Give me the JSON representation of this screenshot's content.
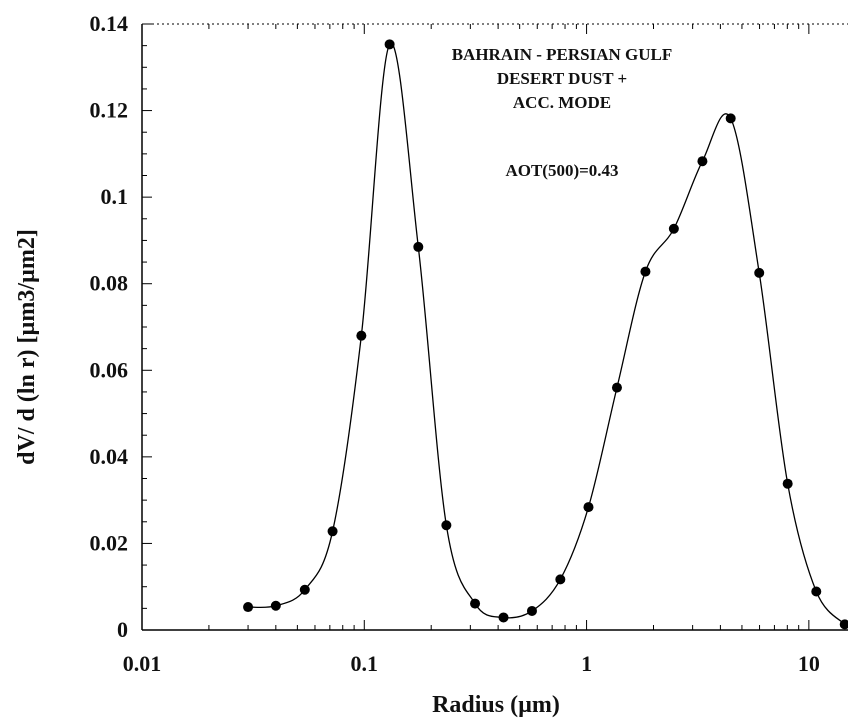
{
  "chart_data": {
    "type": "scatter",
    "xlabel": "Radius (µm)",
    "ylabel": "dV/ d (ln r)  [µm3/µm2]",
    "xscale": "log",
    "xlim": [
      0.01,
      15
    ],
    "ylim": [
      0,
      0.14
    ],
    "x_ticks": [
      0.01,
      0.1,
      1,
      10
    ],
    "x_tick_labels": [
      "0.01",
      "0.1",
      "1",
      "10"
    ],
    "y_ticks": [
      0,
      0.02,
      0.04,
      0.06,
      0.08,
      0.1,
      0.12,
      0.14
    ],
    "y_tick_labels": [
      "0",
      "0.02",
      "0.04",
      "0.06",
      "0.08",
      "0.1",
      "0.12",
      "0.14"
    ],
    "grid": false,
    "annotations": [
      "BAHRAIN - PERSIAN GULF",
      "DESERT DUST +",
      "ACC. MODE",
      "AOT(500)=0.43"
    ],
    "series": [
      {
        "x": [
          0.03,
          0.04,
          0.054,
          0.072,
          0.097,
          0.13,
          0.175,
          0.234,
          0.315,
          0.423,
          0.568,
          0.762,
          1.02,
          1.37,
          1.84,
          2.47,
          3.32,
          4.45,
          5.98,
          8.03,
          10.8,
          14.5
        ],
        "values": [
          0.0053,
          0.0056,
          0.0093,
          0.0228,
          0.068,
          0.1353,
          0.0885,
          0.0242,
          0.0061,
          0.0029,
          0.0044,
          0.0117,
          0.0284,
          0.056,
          0.0828,
          0.0927,
          0.1083,
          0.1182,
          0.0825,
          0.0338,
          0.0089,
          0.0013
        ],
        "marker": "filled-circle",
        "line": "smooth",
        "color": "#000000"
      }
    ]
  }
}
